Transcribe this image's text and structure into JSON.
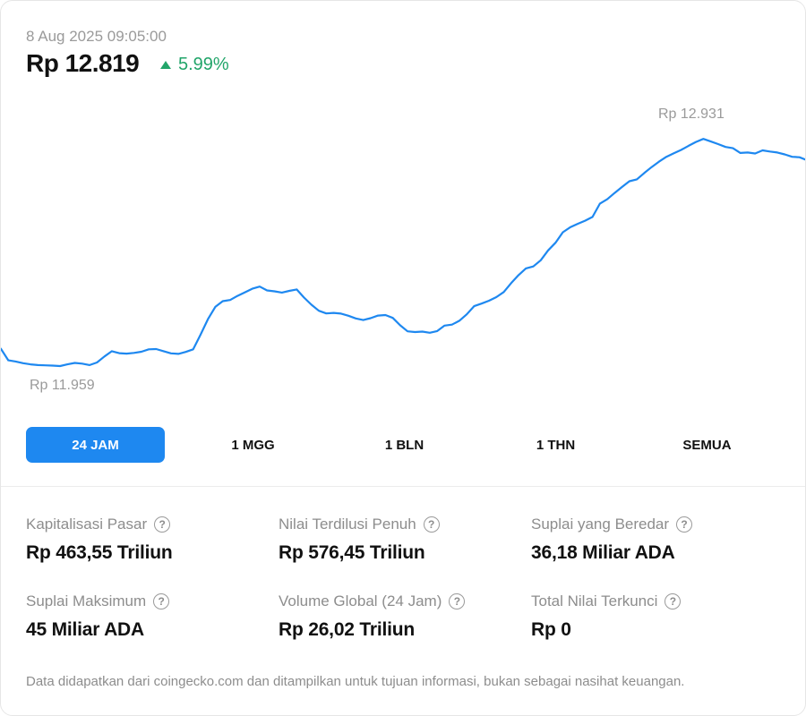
{
  "header": {
    "timestamp": "8 Aug 2025 09:05:00",
    "price": "Rp 12.819",
    "change": "5.99%",
    "colors": {
      "positive": "#22a56a",
      "line": "#1e88f0",
      "tab_active": "#1e88f0"
    }
  },
  "chart_data": {
    "type": "line",
    "title": "",
    "xlabel": "",
    "ylabel": "",
    "ylim": [
      11959,
      12931
    ],
    "high_label": "Rp 12.931",
    "low_label": "Rp 11.959",
    "values": [
      12031,
      11983,
      11978,
      11971,
      11966,
      11963,
      11962,
      11961,
      11959,
      11966,
      11972,
      11969,
      11963,
      11974,
      11999,
      12021,
      12013,
      12011,
      12014,
      12019,
      12029,
      12030,
      12021,
      12012,
      12010,
      12018,
      12029,
      12090,
      12155,
      12206,
      12230,
      12235,
      12252,
      12267,
      12282,
      12291,
      12275,
      12271,
      12266,
      12273,
      12279,
      12245,
      12215,
      12190,
      12179,
      12181,
      12178,
      12169,
      12158,
      12151,
      12159,
      12170,
      12172,
      12160,
      12129,
      12104,
      12101,
      12103,
      12098,
      12105,
      12128,
      12132,
      12148,
      12175,
      12209,
      12220,
      12232,
      12247,
      12268,
      12305,
      12339,
      12367,
      12375,
      12401,
      12442,
      12474,
      12518,
      12539,
      12553,
      12566,
      12582,
      12637,
      12656,
      12682,
      12707,
      12731,
      12739,
      12765,
      12790,
      12813,
      12833,
      12848,
      12862,
      12879,
      12895,
      12908,
      12897,
      12886,
      12874,
      12869,
      12849,
      12851,
      12847,
      12860,
      12855,
      12851,
      12843,
      12833,
      12831,
      12819
    ]
  },
  "tabs": [
    {
      "label": "24 JAM",
      "active": true
    },
    {
      "label": "1 MGG",
      "active": false
    },
    {
      "label": "1 BLN",
      "active": false
    },
    {
      "label": "1 THN",
      "active": false
    },
    {
      "label": "SEMUA",
      "active": false
    }
  ],
  "stats": [
    {
      "label": "Kapitalisasi Pasar",
      "value": "Rp 463,55 Triliun"
    },
    {
      "label": "Nilai Terdilusi Penuh",
      "value": "Rp 576,45 Triliun"
    },
    {
      "label": "Suplai yang Beredar",
      "value": "36,18 Miliar ADA"
    },
    {
      "label": "Suplai Maksimum",
      "value": "45 Miliar ADA"
    },
    {
      "label": "Volume Global (24 Jam)",
      "value": "Rp 26,02 Triliun"
    },
    {
      "label": "Total Nilai Terkunci",
      "value": "Rp 0"
    }
  ],
  "help_icon": "question-circle-icon",
  "footnote": "Data didapatkan dari coingecko.com dan ditampilkan untuk tujuan informasi, bukan sebagai nasihat keuangan."
}
